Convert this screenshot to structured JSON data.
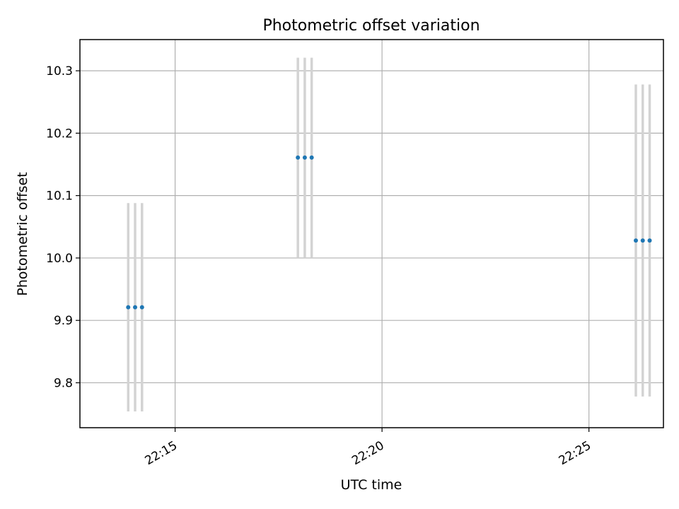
{
  "colors": {
    "point": "#1f77b4",
    "errorbar": "#d3d3d3",
    "grid": "#b0b0b0",
    "axes": "#000000",
    "background": "#ffffff"
  },
  "chart_data": {
    "type": "scatter",
    "title": "Photometric offset variation",
    "xlabel": "UTC time",
    "ylabel": "Photometric offset",
    "x_axis_type": "time",
    "xlim": [
      "22:12:42",
      "22:26:48"
    ],
    "ylim": [
      9.728,
      10.35
    ],
    "xticks": [
      {
        "value": "22:15:00",
        "label": "22:15"
      },
      {
        "value": "22:20:00",
        "label": "22:20"
      },
      {
        "value": "22:25:00",
        "label": "22:25"
      }
    ],
    "yticks": [
      {
        "value": 9.8,
        "label": "9.8"
      },
      {
        "value": 9.9,
        "label": "9.9"
      },
      {
        "value": 10.0,
        "label": "10.0"
      },
      {
        "value": 10.1,
        "label": "10.1"
      },
      {
        "value": 10.2,
        "label": "10.2"
      },
      {
        "value": 10.3,
        "label": "10.3"
      }
    ],
    "grid": true,
    "points": [
      {
        "x": "22:13:52",
        "y": 9.921,
        "yerr": 0.167
      },
      {
        "x": "22:14:02",
        "y": 9.921,
        "yerr": 0.167
      },
      {
        "x": "22:14:12",
        "y": 9.921,
        "yerr": 0.167
      },
      {
        "x": "22:17:58",
        "y": 10.161,
        "yerr": 0.16
      },
      {
        "x": "22:18:08",
        "y": 10.161,
        "yerr": 0.16
      },
      {
        "x": "22:18:18",
        "y": 10.161,
        "yerr": 0.16
      },
      {
        "x": "22:26:08",
        "y": 10.028,
        "yerr": 0.25
      },
      {
        "x": "22:26:18",
        "y": 10.028,
        "yerr": 0.25
      },
      {
        "x": "22:26:28",
        "y": 10.028,
        "yerr": 0.25
      }
    ]
  }
}
